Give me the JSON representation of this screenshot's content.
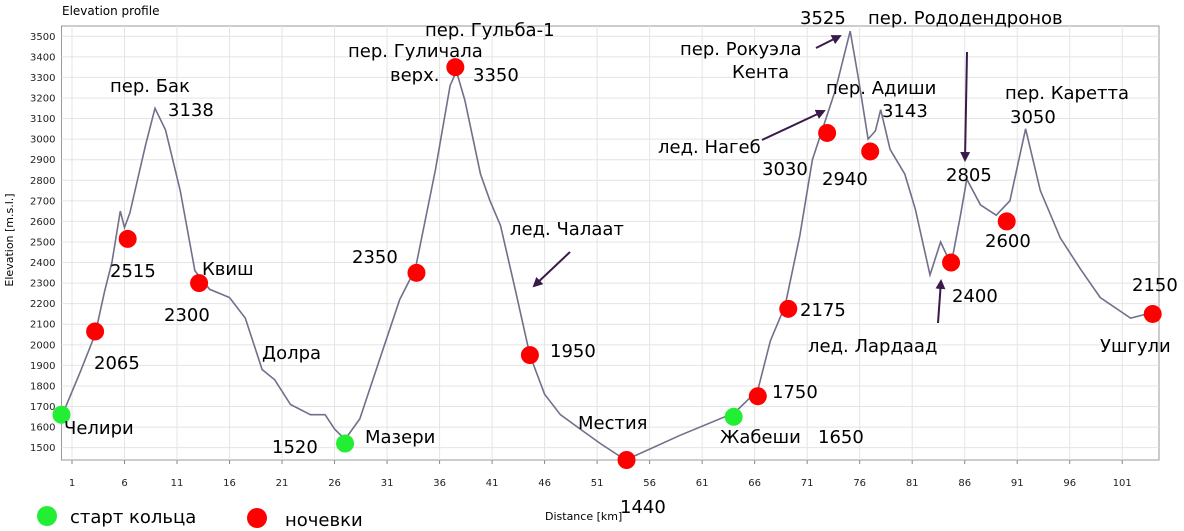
{
  "chart_data": {
    "type": "line",
    "title": "Elevation profile",
    "xlabel": "Distance [km]",
    "ylabel": "Elevation [m.s.l.]",
    "xlim": [
      0,
      104.5
    ],
    "ylim": [
      1440,
      3550
    ],
    "xticks": [
      1,
      6,
      11,
      16,
      21,
      26,
      31,
      36,
      41,
      46,
      51,
      56,
      61,
      66,
      71,
      76,
      81,
      86,
      91,
      96,
      101
    ],
    "yticks": [
      1500,
      1600,
      1700,
      1800,
      1900,
      2000,
      2100,
      2200,
      2300,
      2400,
      2500,
      2600,
      2700,
      2800,
      2900,
      3000,
      3100,
      3200,
      3300,
      3400,
      3500
    ],
    "grid": true,
    "profile": {
      "color": "#70708a",
      "x": [
        0,
        1.8,
        3.2,
        4.1,
        4.8,
        5.6,
        6,
        6.5,
        8,
        8.9,
        9.9,
        11.3,
        12.7,
        14.1,
        16,
        17.5,
        19.1,
        20.3,
        21.8,
        23.7,
        25.1,
        26,
        27,
        28.4,
        30.3,
        32.2,
        33.7,
        35.6,
        37,
        37.6,
        38.4,
        39.9,
        40.8,
        41.8,
        43.2,
        44.6,
        46,
        47.5,
        49.4,
        51.3,
        53.7,
        58.9,
        64.1,
        66.3,
        67.5,
        68.9,
        70.3,
        71.5,
        72.4,
        73.7,
        75.1,
        75.9,
        76.8,
        77.5,
        78,
        78.9,
        80.3,
        81.3,
        82.7,
        83.7,
        84.7,
        85.6,
        86.2,
        87.5,
        89,
        90.3,
        91.8,
        93.2,
        95.1,
        97,
        98.9,
        101.8,
        104.1
      ],
      "values": [
        1650,
        1870,
        2050,
        2260,
        2400,
        2650,
        2570,
        2640,
        2970,
        3150,
        3045,
        2750,
        2360,
        2270,
        2230,
        2130,
        1880,
        1830,
        1710,
        1660,
        1660,
        1590,
        1540,
        1640,
        1930,
        2220,
        2370,
        2850,
        3260,
        3330,
        3190,
        2830,
        2700,
        2580,
        2270,
        1950,
        1760,
        1660,
        1590,
        1520,
        1440,
        1560,
        1670,
        1780,
        2020,
        2190,
        2530,
        2900,
        3040,
        3240,
        3525,
        3290,
        3000,
        3040,
        3143,
        2950,
        2830,
        2660,
        2340,
        2500,
        2390,
        2630,
        2805,
        2680,
        2630,
        2700,
        3050,
        2750,
        2520,
        2370,
        2230,
        2130,
        2160
      ]
    },
    "series": [
      {
        "name": "старт кольца",
        "color": "#22ee33",
        "x": [
          0,
          27,
          64
        ],
        "values": [
          1660,
          1520,
          1650
        ]
      },
      {
        "name": "ночевки",
        "color": "#ff0000",
        "x": [
          3.2,
          6.3,
          13.1,
          33.8,
          37.5,
          44.6,
          53.8,
          66.3,
          69.2,
          72.9,
          77,
          84.7,
          90,
          103.9
        ],
        "values": [
          2065,
          2515,
          2300,
          2350,
          3350,
          1950,
          1440,
          1750,
          2175,
          3030,
          2940,
          2400,
          2600,
          2150
        ]
      }
    ],
    "annotations": [
      "пер. Бак",
      "3138",
      "Квиш",
      "Долра",
      "Челири",
      "Мазери",
      "пер. Гульба-1",
      "пер. Гуличала",
      "верх.",
      "лед. Чалаат",
      "Местия",
      "Жабеши",
      "лед. Нагеб",
      "3525",
      "пер. Рокуэла",
      "Кента",
      "пер. Рододендронов",
      "пер. Адиши",
      "3143",
      "2805",
      "пер. Каретта",
      "3050",
      "лед. Лардаад",
      "Ушгули"
    ]
  }
}
